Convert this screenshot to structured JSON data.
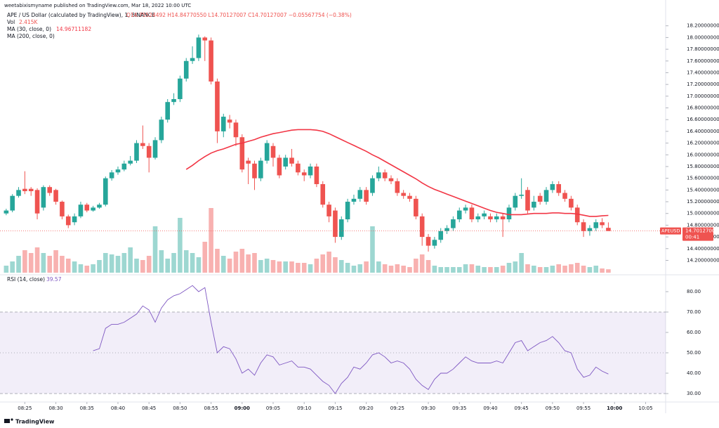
{
  "header": {
    "publisher": "weetabixismyname published on TradingView.com, Mar 18, 2022 10:00 UTC"
  },
  "chart_data": [
    {
      "type": "candlestick",
      "title": "APE / US Dollar (calculated by TradingView), 1, BINANCE",
      "ohlc_label": "O14.75524492 H14.84770550 L14.70127007 C14.70127007 −0.05567754 (−0.38%)",
      "up_color": "#26a69a",
      "down_color": "#ef5350",
      "x": [
        "08:22",
        "08:23",
        "08:24",
        "08:25",
        "08:26",
        "08:27",
        "08:28",
        "08:29",
        "08:30",
        "08:31",
        "08:32",
        "08:33",
        "08:34",
        "08:35",
        "08:36",
        "08:37",
        "08:38",
        "08:39",
        "08:40",
        "08:41",
        "08:42",
        "08:43",
        "08:44",
        "08:45",
        "08:46",
        "08:47",
        "08:48",
        "08:49",
        "08:50",
        "08:51",
        "08:52",
        "08:53",
        "08:54",
        "08:55",
        "08:56",
        "08:57",
        "08:58",
        "08:59",
        "09:00",
        "09:01",
        "09:02",
        "09:03",
        "09:04",
        "09:05",
        "09:06",
        "09:07",
        "09:08",
        "09:09",
        "09:10",
        "09:11",
        "09:12",
        "09:13",
        "09:14",
        "09:15",
        "09:16",
        "09:17",
        "09:18",
        "09:19",
        "09:20",
        "09:21",
        "09:22",
        "09:23",
        "09:24",
        "09:25",
        "09:26",
        "09:27",
        "09:28",
        "09:29",
        "09:30",
        "09:31",
        "09:32",
        "09:33",
        "09:34",
        "09:35",
        "09:36",
        "09:37",
        "09:38",
        "09:39",
        "09:40",
        "09:41",
        "09:42",
        "09:43",
        "09:44",
        "09:45",
        "09:46",
        "09:47",
        "09:48",
        "09:49",
        "09:50",
        "09:51",
        "09:52",
        "09:53",
        "09:54",
        "09:55",
        "09:56",
        "09:57",
        "09:58",
        "09:59"
      ],
      "xlim": [
        "08:21",
        "10:08"
      ],
      "xticks": [
        "08:25",
        "08:30",
        "08:35",
        "08:40",
        "08:45",
        "08:50",
        "08:55",
        "09:00",
        "09:05",
        "09:10",
        "09:15",
        "09:20",
        "09:25",
        "09:30",
        "09:35",
        "09:40",
        "09:45",
        "09:50",
        "09:55",
        "10:00",
        "10:05"
      ],
      "open": [
        15.0,
        15.05,
        15.3,
        15.42,
        15.42,
        15.4,
        15.1,
        15.45,
        15.4,
        15.2,
        14.95,
        14.85,
        14.95,
        15.15,
        15.05,
        15.1,
        15.15,
        15.6,
        15.7,
        15.75,
        15.85,
        15.9,
        16.2,
        16.15,
        15.95,
        16.25,
        16.6,
        16.9,
        16.95,
        17.3,
        17.6,
        17.65,
        18.0,
        17.95,
        17.25,
        16.4,
        16.6,
        16.55,
        16.3,
        15.9,
        15.85,
        15.6,
        15.9,
        16.15,
        15.95,
        15.8,
        15.95,
        15.85,
        15.7,
        15.65,
        15.8,
        15.5,
        15.15,
        15.05,
        14.6,
        14.9,
        15.2,
        15.25,
        15.4,
        15.35,
        15.6,
        15.7,
        15.6,
        15.55,
        15.35,
        15.3,
        15.25,
        14.95,
        14.6,
        14.45,
        14.55,
        14.7,
        14.75,
        14.9,
        15.05,
        15.1,
        14.9,
        14.95,
        14.95,
        14.9,
        14.95,
        14.9,
        15.1,
        15.3,
        15.4,
        15.1,
        15.3,
        15.2,
        15.4,
        15.5,
        15.35,
        15.25,
        15.1,
        14.85,
        14.7,
        14.75,
        14.85,
        14.75524492
      ],
      "high": [
        15.08,
        15.33,
        15.45,
        15.72,
        15.45,
        15.43,
        15.48,
        15.48,
        15.42,
        15.22,
        14.98,
        15.0,
        15.2,
        15.18,
        15.13,
        15.18,
        15.63,
        15.74,
        15.8,
        15.9,
        15.98,
        16.25,
        16.5,
        16.2,
        16.3,
        16.65,
        16.95,
        17.05,
        17.35,
        17.65,
        17.85,
        18.05,
        18.02,
        18.0,
        17.3,
        16.7,
        16.68,
        16.6,
        16.35,
        15.95,
        15.9,
        15.95,
        16.25,
        16.2,
        16.0,
        16.0,
        16.1,
        15.9,
        15.75,
        15.85,
        15.85,
        15.55,
        15.2,
        15.1,
        14.95,
        15.25,
        15.32,
        15.45,
        15.45,
        15.65,
        15.8,
        15.75,
        15.65,
        15.6,
        15.4,
        15.35,
        15.3,
        15.0,
        14.65,
        14.6,
        14.75,
        14.8,
        14.95,
        15.1,
        15.15,
        15.15,
        15.0,
        15.05,
        15.0,
        15.0,
        15.0,
        15.15,
        15.35,
        15.6,
        15.45,
        15.3,
        15.35,
        15.45,
        15.55,
        15.55,
        15.4,
        15.3,
        15.15,
        14.9,
        14.8,
        14.9,
        14.92,
        14.8477055
      ],
      "low": [
        14.97,
        15.02,
        15.27,
        15.33,
        15.3,
        14.9,
        15.05,
        15.3,
        15.15,
        14.9,
        14.75,
        14.8,
        14.92,
        15.02,
        15.03,
        15.08,
        15.12,
        15.56,
        15.66,
        15.72,
        15.82,
        15.86,
        16.1,
        15.7,
        15.92,
        16.2,
        16.55,
        16.85,
        16.9,
        17.25,
        17.55,
        17.6,
        17.6,
        17.2,
        16.2,
        16.3,
        16.45,
        16.15,
        15.7,
        15.5,
        15.4,
        15.55,
        15.85,
        15.8,
        15.6,
        15.75,
        15.8,
        15.65,
        15.55,
        15.6,
        15.45,
        15.1,
        14.85,
        14.5,
        14.55,
        14.85,
        15.15,
        15.2,
        15.15,
        15.3,
        15.55,
        15.55,
        15.5,
        15.3,
        15.25,
        15.2,
        14.9,
        14.45,
        14.35,
        14.4,
        14.5,
        14.65,
        14.7,
        14.85,
        15.0,
        14.85,
        14.85,
        14.9,
        14.85,
        14.85,
        14.6,
        14.85,
        15.05,
        15.25,
        15.0,
        15.05,
        15.15,
        15.15,
        15.35,
        15.3,
        15.2,
        15.05,
        14.8,
        14.6,
        14.62,
        14.7,
        14.75,
        14.70127007
      ],
      "close": [
        15.05,
        15.3,
        15.4,
        15.38,
        15.38,
        15.0,
        15.45,
        15.35,
        15.2,
        14.95,
        14.8,
        14.95,
        15.15,
        15.05,
        15.1,
        15.15,
        15.6,
        15.7,
        15.75,
        15.85,
        15.9,
        16.2,
        16.15,
        15.95,
        16.25,
        16.6,
        16.9,
        16.95,
        17.3,
        17.6,
        17.65,
        18.0,
        17.95,
        17.25,
        16.4,
        16.65,
        16.55,
        16.3,
        15.75,
        15.85,
        15.6,
        15.9,
        16.2,
        15.95,
        15.65,
        15.95,
        15.85,
        15.7,
        15.65,
        15.8,
        15.5,
        15.15,
        14.95,
        14.6,
        14.9,
        15.2,
        15.25,
        15.4,
        15.2,
        15.6,
        15.7,
        15.6,
        15.55,
        15.35,
        15.3,
        15.25,
        14.95,
        14.6,
        14.45,
        14.55,
        14.7,
        14.75,
        14.9,
        15.05,
        15.1,
        14.9,
        14.95,
        15.0,
        14.9,
        14.95,
        14.9,
        15.1,
        15.3,
        15.32,
        15.05,
        15.2,
        15.2,
        15.4,
        15.5,
        15.35,
        15.25,
        15.1,
        14.85,
        14.7,
        14.75,
        14.85,
        14.8,
        14.70127007
      ],
      "volume": {
        "name": "Vol",
        "value_label": "2.415K",
        "values": [
          5,
          8,
          12,
          16,
          14,
          18,
          14,
          12,
          16,
          12,
          10,
          8,
          6,
          5,
          6,
          9,
          14,
          13,
          12,
          14,
          18,
          10,
          9,
          12,
          33,
          16,
          10,
          14,
          39,
          16,
          14,
          11,
          22,
          46,
          17,
          12,
          10,
          15,
          17,
          13,
          14,
          9,
          10,
          9,
          8,
          8,
          8,
          7,
          7,
          6,
          10,
          13,
          15,
          11,
          9,
          7,
          5,
          6,
          8,
          33,
          8,
          6,
          5,
          6,
          5,
          4,
          10,
          13,
          9,
          5,
          4,
          4,
          4,
          4,
          6,
          6,
          5,
          4,
          4,
          4,
          5,
          7,
          8,
          14,
          6,
          5,
          4,
          4,
          5,
          6,
          5,
          6,
          7,
          5,
          4,
          5,
          3,
          2.415
        ]
      },
      "series": [
        {
          "name": "MA (30, close, 0)",
          "color": "#f23645",
          "value_label": "14.96711182",
          "values": [
            null,
            null,
            null,
            null,
            null,
            null,
            null,
            null,
            null,
            null,
            null,
            null,
            null,
            null,
            null,
            null,
            null,
            null,
            null,
            null,
            null,
            null,
            null,
            null,
            null,
            null,
            null,
            null,
            null,
            15.75,
            15.82,
            15.9,
            15.97,
            16.03,
            16.07,
            16.1,
            16.14,
            16.18,
            16.2,
            16.23,
            16.26,
            16.3,
            16.33,
            16.36,
            16.38,
            16.4,
            16.42,
            16.43,
            16.43,
            16.43,
            16.42,
            16.4,
            16.36,
            16.31,
            16.26,
            16.21,
            16.16,
            16.11,
            16.06,
            16.0,
            15.95,
            15.89,
            15.83,
            15.77,
            15.71,
            15.65,
            15.59,
            15.52,
            15.46,
            15.41,
            15.37,
            15.33,
            15.29,
            15.25,
            15.21,
            15.17,
            15.13,
            15.09,
            15.05,
            15.02,
            15.0,
            14.98,
            14.98,
            14.98,
            14.99,
            15.0,
            15.0,
            15.0,
            15.01,
            15.01,
            15.0,
            15.0,
            14.99,
            14.97,
            14.95,
            14.95,
            14.96,
            14.96711182
          ]
        },
        {
          "name": "MA (200, close, 0)"
        }
      ],
      "ylim": [
        13.99,
        18.52
      ],
      "yticks": [
        {
          "value": 14.2,
          "label": "14.20000000"
        },
        {
          "value": 14.4,
          "label": "14.40000000"
        },
        {
          "value": 14.6,
          "label": "14.60000000"
        },
        {
          "value": 14.8,
          "label": "14.80000000"
        },
        {
          "value": 15.0,
          "label": "15.00000000"
        },
        {
          "value": 15.2,
          "label": "15.20000000"
        },
        {
          "value": 15.4,
          "label": "15.40000000"
        },
        {
          "value": 15.6,
          "label": "15.60000000"
        },
        {
          "value": 15.8,
          "label": "15.80000000"
        },
        {
          "value": 16.0,
          "label": "16.00000000"
        },
        {
          "value": 16.2,
          "label": "16.20000000"
        },
        {
          "value": 16.4,
          "label": "16.40000000"
        },
        {
          "value": 16.6,
          "label": "16.60000000"
        },
        {
          "value": 16.8,
          "label": "16.80000000"
        },
        {
          "value": 17.0,
          "label": "17.00000000"
        },
        {
          "value": 17.2,
          "label": "17.20000000"
        },
        {
          "value": 17.4,
          "label": "17.40000000"
        },
        {
          "value": 17.6,
          "label": "17.60000000"
        },
        {
          "value": 17.8,
          "label": "17.80000000"
        },
        {
          "value": 18.0,
          "label": "18.00000000"
        },
        {
          "value": 18.2,
          "label": "18.20000000"
        }
      ],
      "last_price": {
        "symbol": "APEUSD",
        "value": 14.70127007,
        "label": "14.70127007",
        "countdown": "00:41"
      }
    },
    {
      "type": "line",
      "series": [
        {
          "name": "RSI (14, close)",
          "color": "#7e57c2",
          "value_label": "39.57",
          "values": [
            null,
            null,
            null,
            null,
            null,
            null,
            null,
            null,
            null,
            null,
            null,
            null,
            null,
            null,
            51,
            52,
            62,
            64,
            64,
            65,
            67,
            69,
            73,
            71,
            65,
            72,
            76,
            78,
            79,
            81,
            83,
            80,
            82,
            65,
            50,
            53,
            52,
            47,
            40,
            42,
            39,
            45,
            49,
            48,
            44,
            45,
            46,
            43,
            43,
            42,
            39,
            36,
            34,
            30,
            35,
            38,
            43,
            42,
            45,
            49,
            50,
            48,
            45,
            46,
            45,
            42,
            37,
            34,
            32,
            37,
            40,
            40,
            42,
            45,
            48,
            46,
            45,
            45,
            45,
            46,
            45,
            50,
            55,
            56,
            51,
            53,
            55,
            56,
            58,
            55,
            51,
            50,
            42,
            38,
            39,
            43,
            41,
            39.57
          ]
        }
      ],
      "band": {
        "lower": 30,
        "upper": 70
      },
      "midline": 50,
      "ylim": [
        26.55,
        86.9
      ],
      "yticks": [
        {
          "value": 30,
          "label": "30.00"
        },
        {
          "value": 40,
          "label": "40.00"
        },
        {
          "value": 50,
          "label": "50.00"
        },
        {
          "value": 60,
          "label": "60.00"
        },
        {
          "value": 70,
          "label": "70.00"
        },
        {
          "value": 80,
          "label": "80.00"
        }
      ]
    }
  ],
  "footer": {
    "brand": "TradingView"
  }
}
